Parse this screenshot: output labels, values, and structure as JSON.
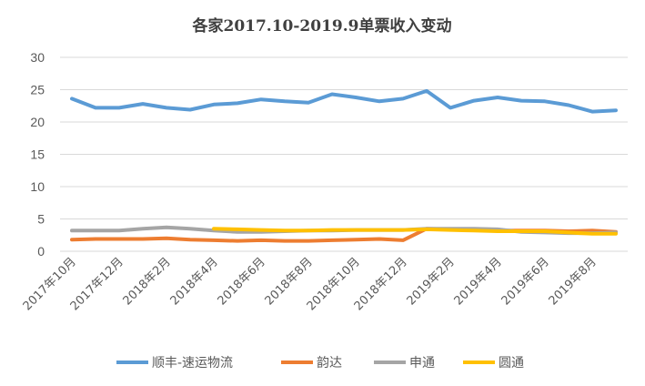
{
  "chart_data": {
    "type": "line",
    "title": "各家2017.10-2019.9单票收入变动",
    "xlabel": "",
    "ylabel": "",
    "ylim": [
      0,
      30
    ],
    "yticks": [
      0,
      5,
      10,
      15,
      20,
      25,
      30
    ],
    "grid": true,
    "legend_position": "bottom",
    "x": [
      "2017年10月",
      "2017年11月",
      "2017年12月",
      "2018年1月",
      "2018年2月",
      "2018年3月",
      "2018年4月",
      "2018年5月",
      "2018年6月",
      "2018年7月",
      "2018年8月",
      "2018年9月",
      "2018年10月",
      "2018年11月",
      "2018年12月",
      "2019年1月",
      "2019年2月",
      "2019年3月",
      "2019年4月",
      "2019年5月",
      "2019年6月",
      "2019年7月",
      "2019年8月",
      "2019年9月"
    ],
    "xtick_labels": [
      "2017年10月",
      "2017年12月",
      "2018年2月",
      "2018年4月",
      "2018年6月",
      "2018年8月",
      "2018年10月",
      "2018年12月",
      "2019年2月",
      "2019年4月",
      "2019年6月",
      "2019年8月"
    ],
    "series": [
      {
        "name": "顺丰-速运物流",
        "color": "#5b9bd5",
        "values": [
          23.6,
          22.2,
          22.2,
          22.8,
          22.2,
          21.9,
          22.7,
          22.9,
          23.5,
          23.2,
          23.0,
          24.3,
          23.8,
          23.2,
          23.6,
          24.8,
          22.2,
          23.3,
          23.8,
          23.3,
          23.2,
          22.6,
          21.6,
          21.8
        ]
      },
      {
        "name": "韵达",
        "color": "#ed7d31",
        "values": [
          1.8,
          1.9,
          1.9,
          1.9,
          2.0,
          1.8,
          1.7,
          1.6,
          1.7,
          1.6,
          1.6,
          1.7,
          1.8,
          1.9,
          1.7,
          3.5,
          3.4,
          3.3,
          3.2,
          3.2,
          3.2,
          3.1,
          3.2,
          3.0
        ]
      },
      {
        "name": "申通",
        "color": "#a5a5a5",
        "values": [
          3.2,
          3.2,
          3.2,
          3.5,
          3.7,
          3.5,
          3.2,
          3.0,
          3.0,
          3.1,
          3.2,
          3.2,
          3.3,
          3.3,
          3.3,
          3.5,
          3.5,
          3.5,
          3.4,
          3.0,
          2.9,
          2.8,
          2.8,
          2.9
        ]
      },
      {
        "name": "圆通",
        "color": "#ffc000",
        "values": [
          null,
          null,
          null,
          null,
          null,
          null,
          3.5,
          3.4,
          3.3,
          3.2,
          3.2,
          3.3,
          3.3,
          3.3,
          3.3,
          3.4,
          3.3,
          3.2,
          3.1,
          3.1,
          3.1,
          2.9,
          2.7,
          2.7
        ]
      }
    ]
  }
}
